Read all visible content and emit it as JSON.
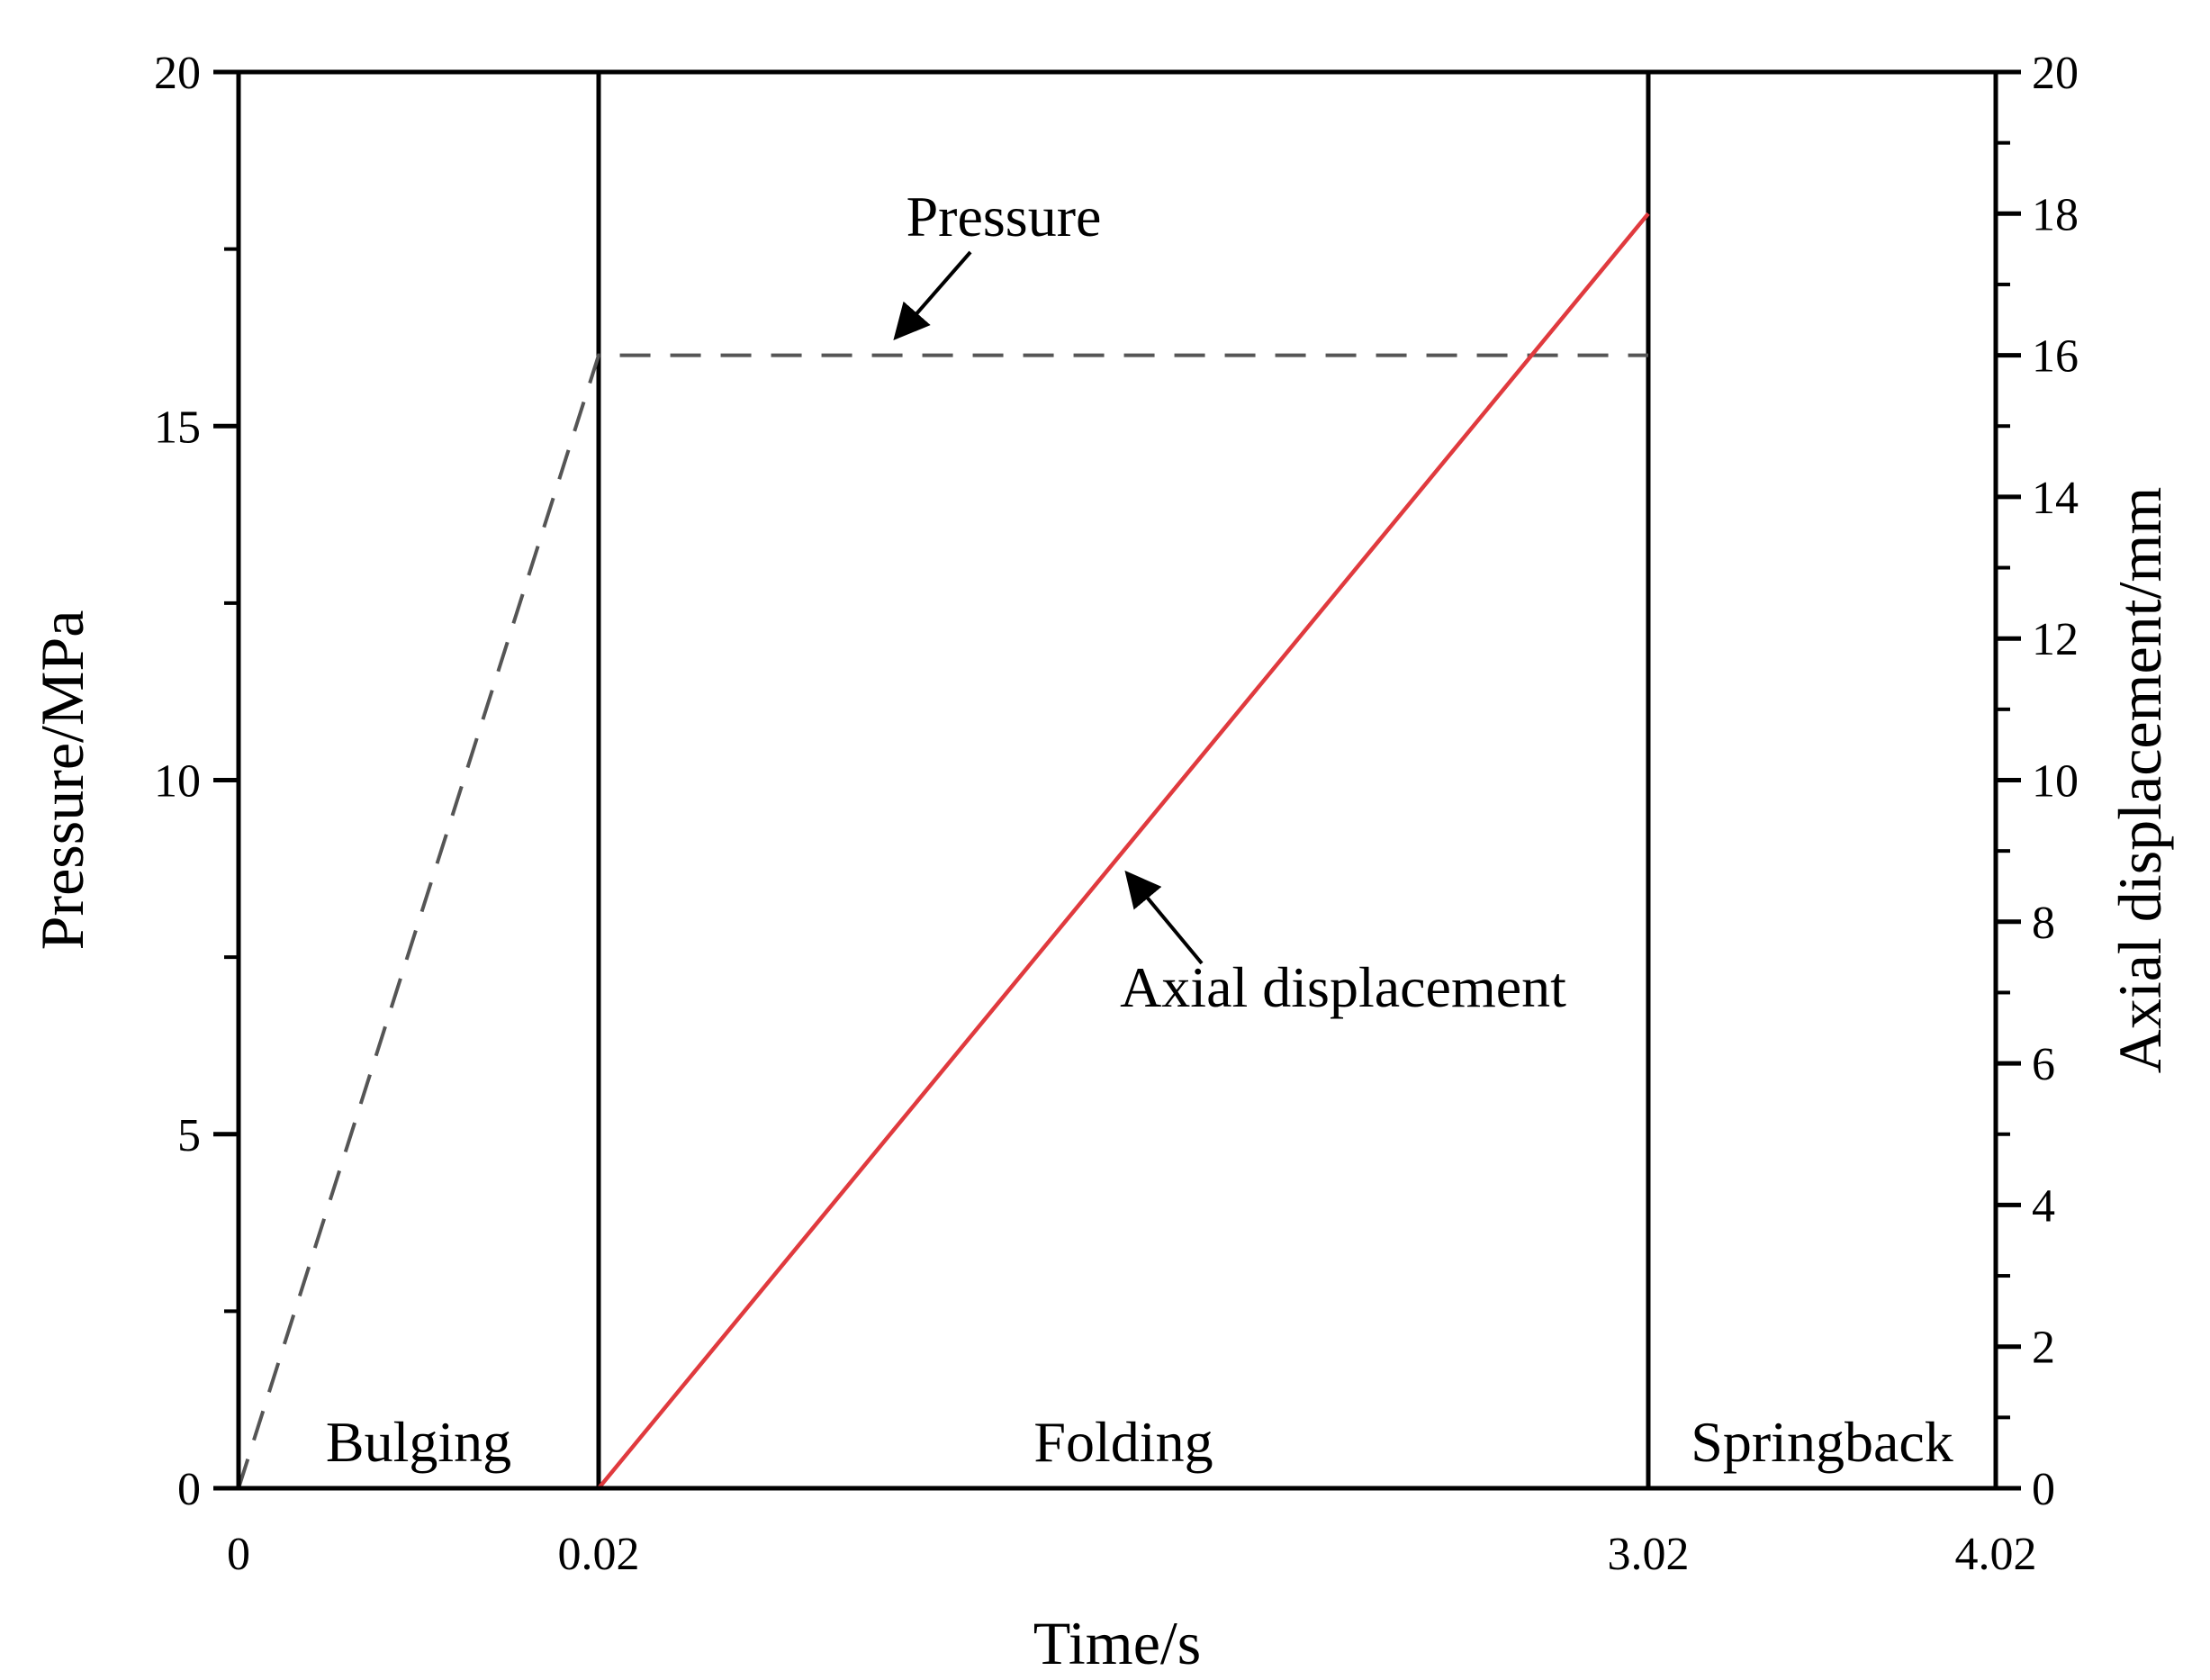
{
  "chart_data": {
    "type": "line",
    "title": "",
    "xlabel": "Time/s",
    "ylabel": "Pressure/MPa",
    "y2label": "Axial displacement/mm",
    "x_ticks": [
      {
        "value": 0,
        "label": "0"
      },
      {
        "value": 0.02,
        "label": "0.02"
      },
      {
        "value": 3.02,
        "label": "3.02"
      },
      {
        "value": 4.02,
        "label": "4.02"
      }
    ],
    "y_ticks": [
      "0",
      "5",
      "10",
      "15",
      "20"
    ],
    "y_tick_values": [
      0,
      5,
      10,
      15,
      20
    ],
    "y2_ticks": [
      "0",
      "2",
      "4",
      "6",
      "8",
      "10",
      "12",
      "14",
      "16",
      "18",
      "20"
    ],
    "y2_tick_values": [
      0,
      2,
      4,
      6,
      8,
      10,
      12,
      14,
      16,
      18,
      20
    ],
    "ylim": [
      0,
      20
    ],
    "y2lim": [
      0,
      20
    ],
    "phase_boundaries": [
      0.02,
      3.02
    ],
    "regions": [
      {
        "label": "Bulging",
        "x_range": [
          0,
          0.02
        ]
      },
      {
        "label": "Folding",
        "x_range": [
          0.02,
          3.02
        ]
      },
      {
        "label": "Springback",
        "x_range": [
          3.02,
          4.02
        ]
      }
    ],
    "series": [
      {
        "name": "Pressure",
        "axis": "left",
        "style": "dashed",
        "color": "#555555",
        "points": [
          [
            0,
            0
          ],
          [
            0.02,
            16
          ],
          [
            3.02,
            16
          ]
        ]
      },
      {
        "name": "Axial displacement",
        "axis": "right",
        "style": "solid",
        "color": "#e03a3e",
        "points": [
          [
            0.02,
            0
          ],
          [
            3.02,
            18
          ]
        ]
      }
    ],
    "annotations": [
      {
        "text": "Pressure",
        "points_to_series": "Pressure"
      },
      {
        "text": "Axial displacement",
        "points_to_series": "Axial displacement"
      }
    ],
    "grid": false,
    "legend": "none"
  }
}
